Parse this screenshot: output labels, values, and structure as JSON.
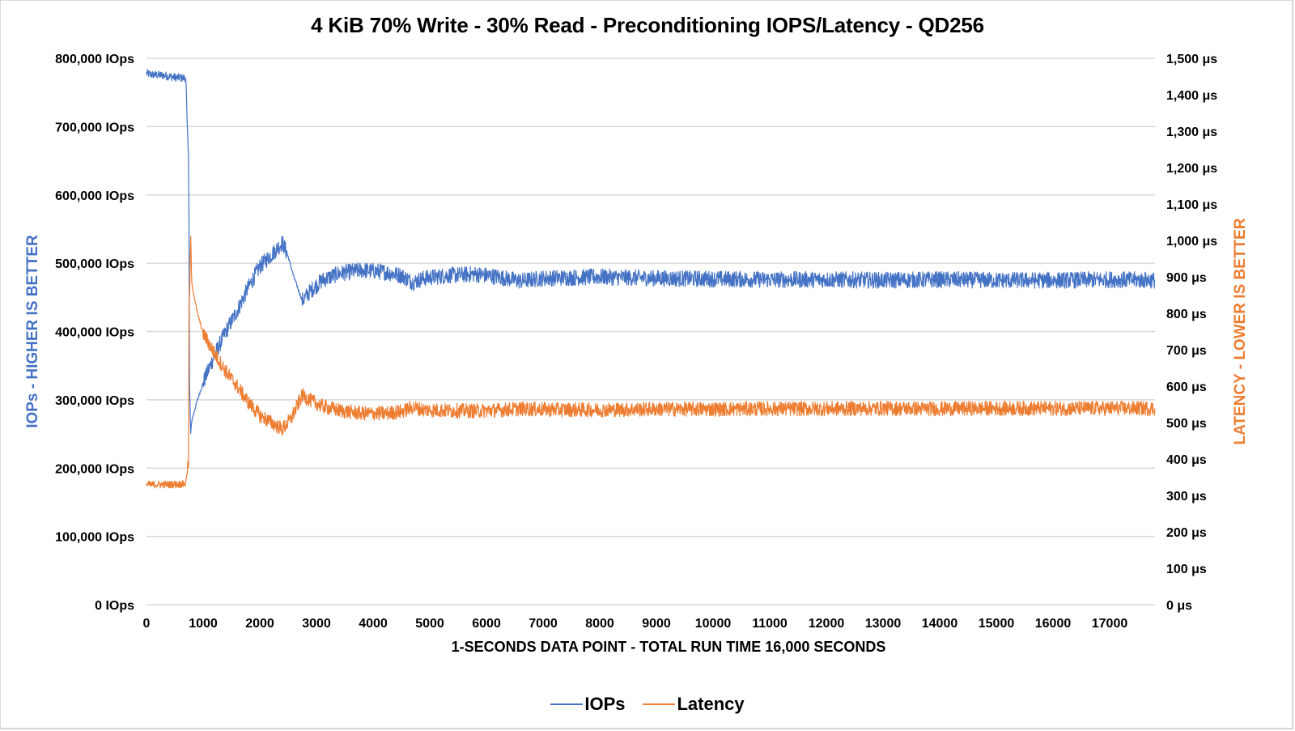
{
  "chart_data": {
    "type": "line",
    "title": "4 KiB 70% Write - 30% Read - Preconditioning IOPS/Latency - QD256",
    "xlabel": "1-SECONDS DATA POINT - TOTAL RUN TIME 16,000 SECONDS",
    "ylabel_left": "IOPs - HIGHER IS BETTER",
    "ylabel_right": "LATENCY - LOWER IS BETTER",
    "xlim": [
      0,
      17800
    ],
    "ylim_left": [
      0,
      800000
    ],
    "ylim_right": [
      0,
      1500
    ],
    "grid": true,
    "legend_position": "bottom",
    "x_ticks": [
      "0",
      "1000",
      "2000",
      "3000",
      "4000",
      "5000",
      "6000",
      "7000",
      "8000",
      "9000",
      "10000",
      "11000",
      "12000",
      "13000",
      "14000",
      "15000",
      "16000",
      "17000"
    ],
    "y_left_ticks": [
      "0 IOps",
      "100,000 IOps",
      "200,000 IOps",
      "300,000 IOps",
      "400,000 IOps",
      "500,000 IOps",
      "600,000 IOps",
      "700,000 IOps",
      "800,000 IOps"
    ],
    "y_right_ticks": [
      "0 μs",
      "100 μs",
      "200 μs",
      "300 μs",
      "400 μs",
      "500 μs",
      "600 μs",
      "700 μs",
      "800 μs",
      "900 μs",
      "1,000 μs",
      "1,100 μs",
      "1,200 μs",
      "1,300 μs",
      "1,400 μs",
      "1,500 μs"
    ],
    "series": [
      {
        "name": "IOPs",
        "axis": "left",
        "color": "#4472c4",
        "noise": 12000,
        "points": [
          [
            0,
            778000
          ],
          [
            100,
            776000
          ],
          [
            300,
            775000
          ],
          [
            500,
            772000
          ],
          [
            690,
            771000
          ],
          [
            700,
            760000
          ],
          [
            720,
            700000
          ],
          [
            740,
            660000
          ],
          [
            750,
            560000
          ],
          [
            760,
            320000
          ],
          [
            780,
            250000
          ],
          [
            800,
            270000
          ],
          [
            900,
            300000
          ],
          [
            1000,
            325000
          ],
          [
            1200,
            365000
          ],
          [
            1400,
            400000
          ],
          [
            1600,
            430000
          ],
          [
            1800,
            465000
          ],
          [
            2000,
            495000
          ],
          [
            2200,
            512000
          ],
          [
            2400,
            530000
          ],
          [
            2500,
            510000
          ],
          [
            2600,
            480000
          ],
          [
            2750,
            445000
          ],
          [
            2900,
            460000
          ],
          [
            3100,
            475000
          ],
          [
            3400,
            485000
          ],
          [
            3800,
            490000
          ],
          [
            4200,
            487000
          ],
          [
            4500,
            482000
          ],
          [
            4700,
            472000
          ],
          [
            4900,
            478000
          ],
          [
            5300,
            482000
          ],
          [
            5800,
            484000
          ],
          [
            6200,
            480000
          ],
          [
            6600,
            474000
          ],
          [
            7000,
            478000
          ],
          [
            8000,
            480000
          ],
          [
            9000,
            478000
          ],
          [
            10000,
            477000
          ],
          [
            11000,
            476000
          ],
          [
            12000,
            476000
          ],
          [
            13000,
            475000
          ],
          [
            14000,
            476000
          ],
          [
            15000,
            475000
          ],
          [
            16000,
            475000
          ],
          [
            17000,
            476000
          ],
          [
            17800,
            475000
          ]
        ]
      },
      {
        "name": "Latency",
        "axis": "right",
        "color": "#ed7d31",
        "noise": 20,
        "points": [
          [
            0,
            329
          ],
          [
            200,
            330
          ],
          [
            400,
            330
          ],
          [
            600,
            331
          ],
          [
            690,
            332
          ],
          [
            720,
            370
          ],
          [
            740,
            380
          ],
          [
            750,
            820
          ],
          [
            760,
            850
          ],
          [
            780,
            1010
          ],
          [
            800,
            880
          ],
          [
            900,
            800
          ],
          [
            1000,
            745
          ],
          [
            1200,
            690
          ],
          [
            1400,
            640
          ],
          [
            1600,
            600
          ],
          [
            1800,
            555
          ],
          [
            2000,
            520
          ],
          [
            2200,
            500
          ],
          [
            2400,
            482
          ],
          [
            2550,
            510
          ],
          [
            2750,
            575
          ],
          [
            2900,
            560
          ],
          [
            3100,
            545
          ],
          [
            3400,
            533
          ],
          [
            3800,
            525
          ],
          [
            4200,
            525
          ],
          [
            4500,
            530
          ],
          [
            4700,
            542
          ],
          [
            4900,
            535
          ],
          [
            5300,
            533
          ],
          [
            5800,
            532
          ],
          [
            6200,
            534
          ],
          [
            6600,
            538
          ],
          [
            7000,
            536
          ],
          [
            8000,
            535
          ],
          [
            9000,
            537
          ],
          [
            10000,
            537
          ],
          [
            11000,
            538
          ],
          [
            12000,
            538
          ],
          [
            13000,
            539
          ],
          [
            14000,
            538
          ],
          [
            15000,
            539
          ],
          [
            16000,
            539
          ],
          [
            17000,
            539
          ],
          [
            17800,
            539
          ]
        ]
      }
    ]
  },
  "legend": {
    "items": [
      {
        "label": "IOPs",
        "color": "#4472c4"
      },
      {
        "label": "Latency",
        "color": "#ed7d31"
      }
    ]
  }
}
